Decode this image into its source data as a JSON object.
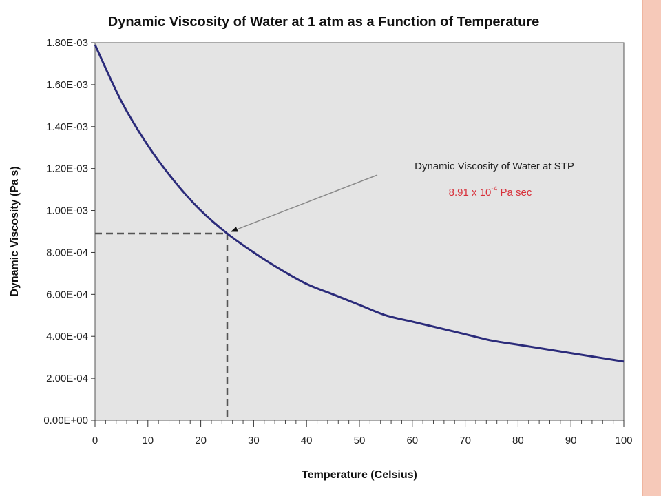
{
  "slide": {
    "accent_color": "#f6c9b9"
  },
  "chart_data": {
    "type": "line",
    "title": "Dynamic Viscosity of Water at 1 atm as a Function of Temperature",
    "xlabel": "Temperature (Celsius)",
    "ylabel": "Dynamic Viscosity (Pa  s)",
    "xlim": [
      0,
      100
    ],
    "ylim": [
      0,
      0.0018
    ],
    "x_ticks": [
      0,
      10,
      20,
      30,
      40,
      50,
      60,
      70,
      80,
      90,
      100
    ],
    "x_tick_labels": [
      "0",
      "10",
      "20",
      "30",
      "40",
      "50",
      "60",
      "70",
      "80",
      "90",
      "100"
    ],
    "y_ticks": [
      0,
      0.0002,
      0.0004,
      0.0006,
      0.0008,
      0.001,
      0.0012,
      0.0014,
      0.0016,
      0.0018
    ],
    "y_tick_labels": [
      "0.00E+00",
      "2.00E-04",
      "4.00E-04",
      "6.00E-04",
      "8.00E-04",
      "1.00E-03",
      "1.20E-03",
      "1.40E-03",
      "1.60E-03",
      "1.80E-03"
    ],
    "grid": false,
    "plot_background": "#e4e4e4",
    "series": [
      {
        "color": "#2b2b7a",
        "x": [
          0,
          5,
          10,
          15,
          20,
          25,
          30,
          35,
          40,
          45,
          50,
          55,
          60,
          65,
          70,
          75,
          80,
          85,
          90,
          95,
          100
        ],
        "y": [
          0.00179,
          0.00152,
          0.00131,
          0.00114,
          0.001,
          0.00089,
          0.0008,
          0.00072,
          0.00065,
          0.0006,
          0.00055,
          0.0005,
          0.00047,
          0.00044,
          0.00041,
          0.00038,
          0.00036,
          0.00034,
          0.00032,
          0.0003,
          0.00028
        ]
      }
    ],
    "annotation": {
      "label": "Dynamic Viscosity of Water at STP",
      "value_prefix": "8.91 x 10",
      "value_exponent": "-4",
      "value_suffix": " Pa sec",
      "value_color": "#d8303a",
      "point": {
        "x": 25,
        "y": 0.00089
      }
    }
  }
}
